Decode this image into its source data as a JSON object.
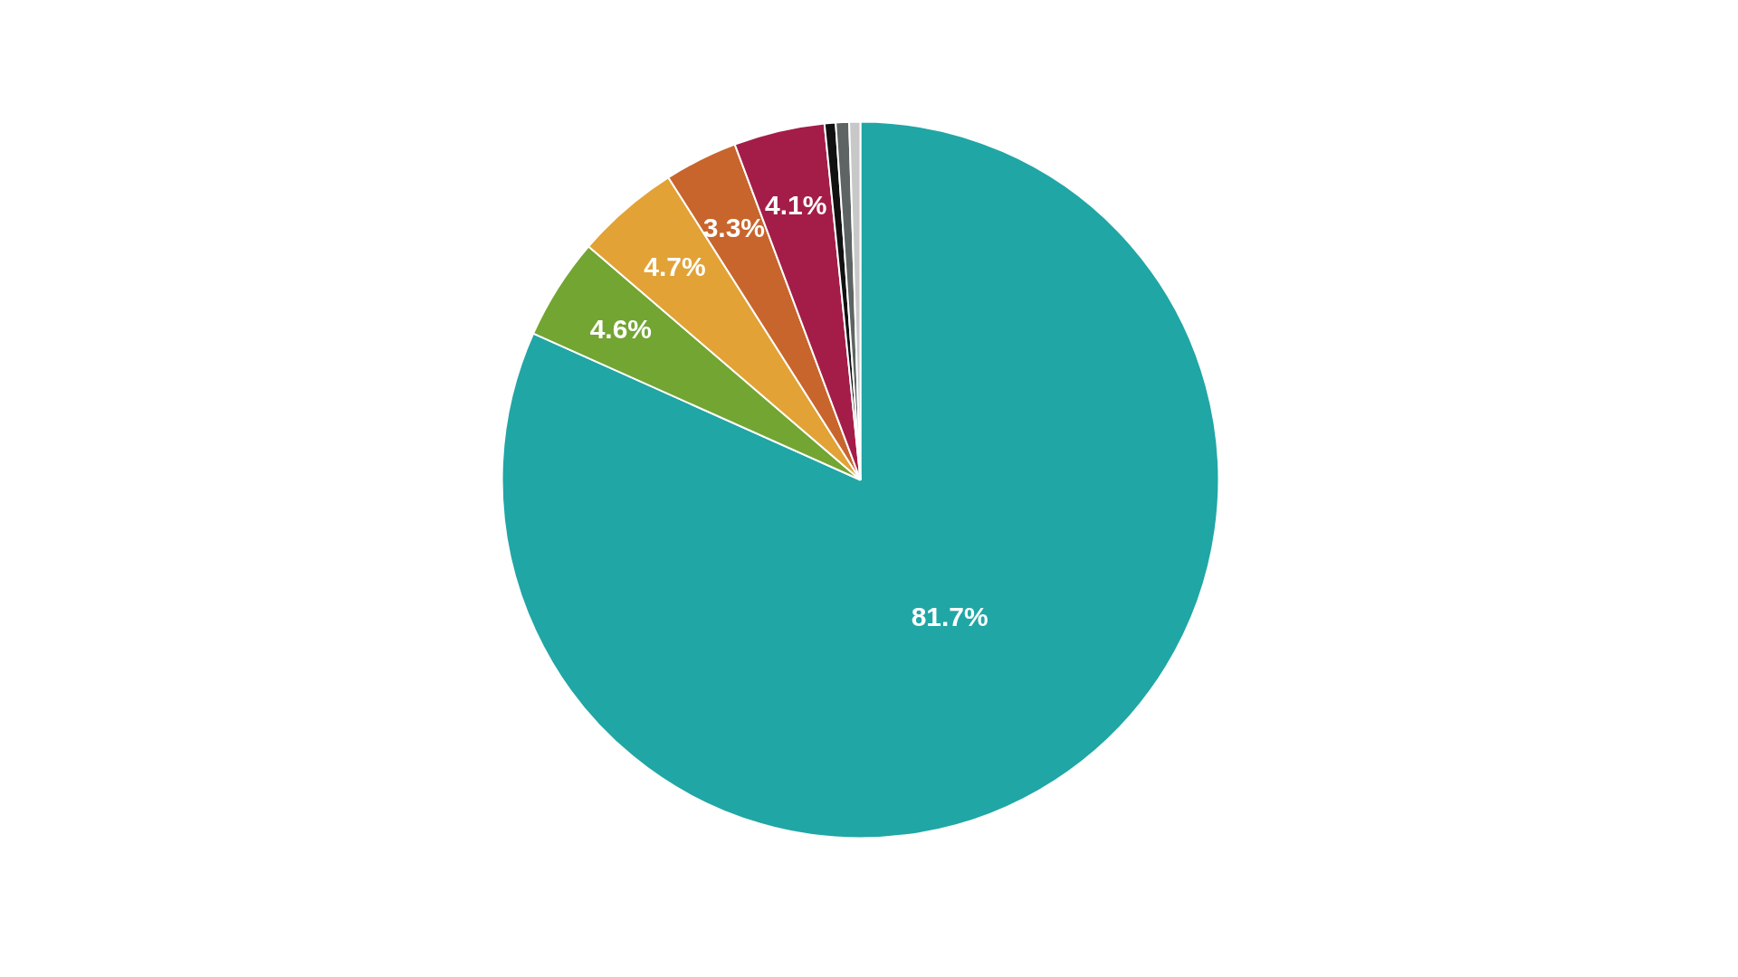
{
  "chart_data": {
    "type": "pie",
    "categories": [
      null,
      null,
      null,
      null,
      null,
      null,
      null,
      null
    ],
    "values": [
      81.7,
      4.6,
      4.7,
      3.3,
      4.1,
      0.5,
      0.6,
      0.5
    ],
    "colors": [
      "#20a6a5",
      "#73a532",
      "#e2a236",
      "#c8652c",
      "#a41d48",
      "#111111",
      "#5d6463",
      "#c8c8c8"
    ],
    "value_labels": [
      "81.7%",
      "4.6%",
      "4.7%",
      "3.3%",
      "4.1%",
      null,
      null,
      null
    ]
  }
}
